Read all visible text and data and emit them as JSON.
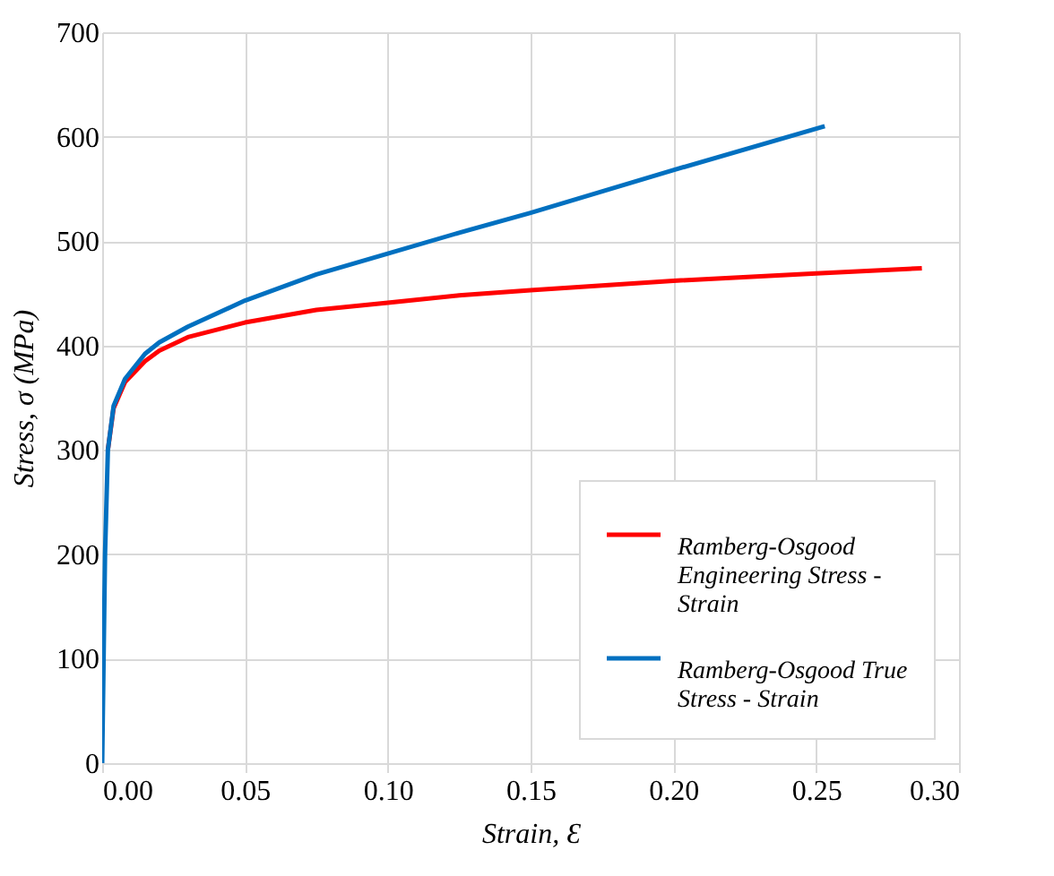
{
  "chart_data": {
    "type": "line",
    "xlabel": "Strain, Ɛ",
    "ylabel": "Stress, σ (MPa)",
    "xlim": [
      0,
      0.3
    ],
    "xticks": [
      {
        "value": 0,
        "label": "0.00"
      },
      {
        "value": 0.05,
        "label": "0.05"
      },
      {
        "value": 0.1,
        "label": "0.10"
      },
      {
        "value": 0.15,
        "label": "0.15"
      },
      {
        "value": 0.2,
        "label": "0.20"
      },
      {
        "value": 0.25,
        "label": "0.25"
      },
      {
        "value": 0.3,
        "label": "0.30"
      }
    ],
    "ylim": [
      0,
      700
    ],
    "yticks": [
      0,
      100,
      200,
      300,
      400,
      500,
      600,
      700
    ],
    "grid": true,
    "legend": "bottom right",
    "line_style": "solid",
    "marker": "none",
    "series": [
      {
        "name": "Ramberg-Osgood Engineering Stress - Strain",
        "color": "#ff0000",
        "x": [
          0.002,
          0.004,
          0.008,
          0.015,
          0.02,
          0.03,
          0.05,
          0.075,
          0.1,
          0.125,
          0.15,
          0.2,
          0.25,
          0.287
        ],
        "values": [
          300,
          340,
          365,
          385,
          395,
          408,
          422,
          434,
          441,
          448,
          453,
          462,
          469,
          474
        ]
      },
      {
        "name": "Ramberg-Osgood True Stress - Strain",
        "color": "#0070c0",
        "x": [
          0,
          0.001,
          0.002,
          0.004,
          0.008,
          0.015,
          0.02,
          0.03,
          0.05,
          0.075,
          0.1,
          0.125,
          0.15,
          0.2,
          0.253
        ],
        "values": [
          0,
          200,
          300,
          342,
          368,
          392,
          403,
          418,
          443,
          468,
          488,
          508,
          527,
          568,
          610
        ]
      }
    ]
  }
}
